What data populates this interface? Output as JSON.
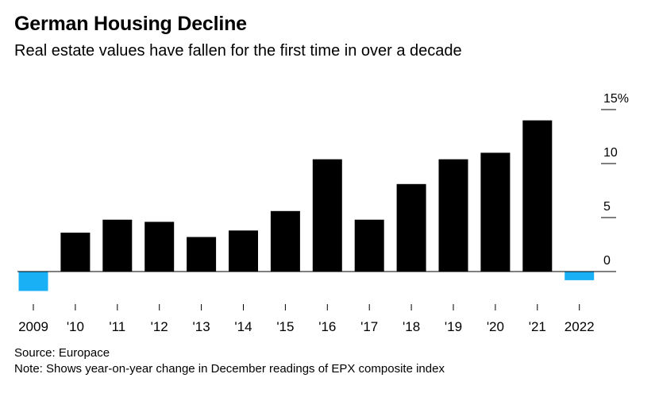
{
  "header": {
    "title": "German Housing Decline",
    "subtitle": "Real estate values have fallen for the first time in over a decade"
  },
  "footer": {
    "source": "Source: Europace",
    "note": "Note: Shows year-on-year change in December readings of EPX composite index"
  },
  "colors": {
    "positive": "#000000",
    "negative": "#1ab0f5",
    "axis": "#000000"
  },
  "chart_data": {
    "type": "bar",
    "categories": [
      "2009",
      "'10",
      "'11",
      "'12",
      "'13",
      "'14",
      "'15",
      "'16",
      "'17",
      "'18",
      "'19",
      "'20",
      "'21",
      "2022"
    ],
    "values": [
      -1.8,
      3.6,
      4.8,
      4.6,
      3.2,
      3.8,
      5.6,
      10.4,
      4.8,
      8.1,
      10.4,
      11.0,
      14.0,
      -0.8
    ],
    "yticks": [
      0,
      5,
      10,
      15
    ],
    "ytick_labels": [
      "0",
      "5",
      "10",
      "15%"
    ],
    "ylim": [
      -2,
      15
    ],
    "grid": false,
    "title": "German Housing Decline",
    "subtitle": "Real estate values have fallen for the first time in over a decade"
  }
}
